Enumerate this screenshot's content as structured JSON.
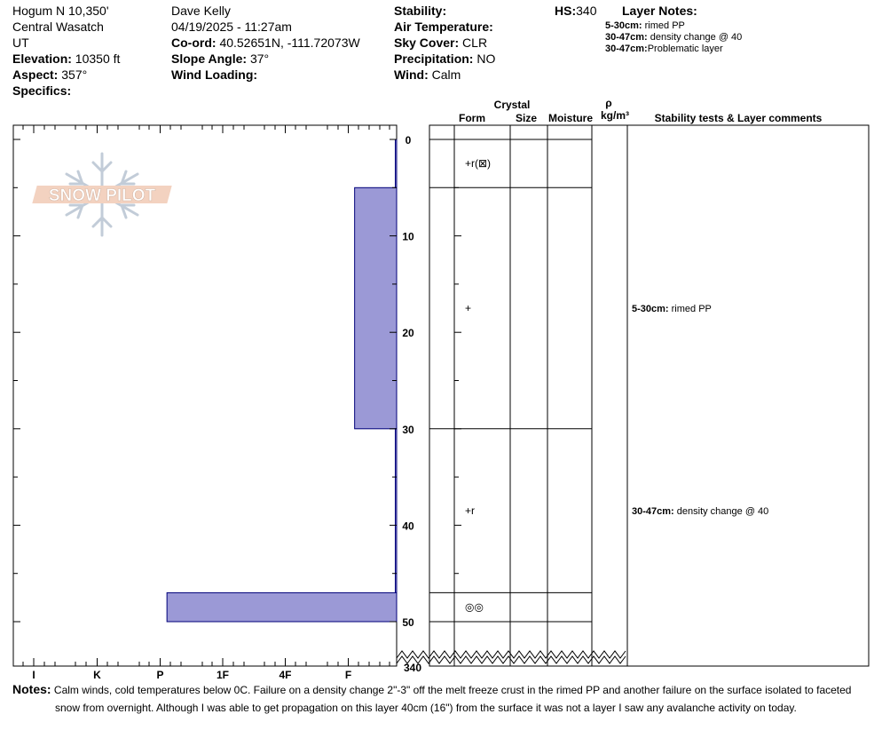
{
  "header": {
    "location": "Hogum N 10,350'",
    "range": "Central Wasatch",
    "state": "UT",
    "elevation_label": "Elevation:",
    "elevation_value": "10350 ft",
    "aspect_label": "Aspect:",
    "aspect_value": "357°",
    "specifics_label": "Specifics:",
    "observer": "Dave Kelly",
    "datetime": "04/19/2025 - 11:27am",
    "coord_label": "Co-ord:",
    "coord_value": "40.52651N, -111.72073W",
    "slope_label": "Slope Angle:",
    "slope_value": "37°",
    "wind_loading_label": "Wind Loading:",
    "stability_label": "Stability:",
    "air_temp_label": "Air Temperature:",
    "sky_label": "Sky Cover:",
    "sky_value": "CLR",
    "precip_label": "Precipitation:",
    "precip_value": "NO",
    "wind_label": "Wind:",
    "wind_value": "Calm",
    "hs_label": "HS:",
    "hs_value": "340",
    "layer_notes_title": "Layer Notes:",
    "layer_notes": [
      {
        "range": "5-30cm:",
        "text": "rimed PP"
      },
      {
        "range": "30-47cm:",
        "text": "density change @ 40"
      },
      {
        "range": "30-47cm:",
        "text": "Problematic layer"
      }
    ]
  },
  "columns": {
    "crystal": "Crystal",
    "form": "Form",
    "size": "Size",
    "moisture": "Moisture",
    "rho": "ρ",
    "density_unit": "kg/m³",
    "comments": "Stability tests & Layer comments"
  },
  "logo_text": "SNOW PILOT",
  "notes_label": "Notes:",
  "notes_line1": "Calm winds, cold temperatures below 0C. Failure on a density change 2\"-3\" off the melt freeze crust in the rimed PP and another failure on the surface isolated to faceted",
  "notes_line2": "snow from overnight. Although I was able to get propagation on this layer 40cm (16\") from the surface it was not a layer I saw any avalanche activity on today.",
  "chart_data": {
    "type": "bar",
    "orientation": "horizontal",
    "description_axis": "hardness",
    "hardness_scale": [
      "I",
      "K",
      "P",
      "1F",
      "4F",
      "F"
    ],
    "depth_ticks": [
      0,
      10,
      20,
      30,
      40,
      50
    ],
    "depth_break_label": "340",
    "depth_range": [
      0,
      50
    ],
    "layers": [
      {
        "top": 0,
        "bottom": 5,
        "hardness": "F-",
        "hardness_index": 6.65
      },
      {
        "top": 5,
        "bottom": 30,
        "hardness": "F",
        "hardness_index": 6.0
      },
      {
        "top": 30,
        "bottom": 47,
        "hardness": "F-",
        "hardness_index": 6.65
      },
      {
        "top": 47,
        "bottom": 50,
        "hardness": "P",
        "hardness_index": 3.0
      }
    ],
    "crystal_forms": [
      {
        "top": 0,
        "bottom": 5,
        "form": "+r(⊠)"
      },
      {
        "top": 5,
        "bottom": 30,
        "form": "+"
      },
      {
        "top": 30,
        "bottom": 47,
        "form": "+r"
      },
      {
        "top": 47,
        "bottom": 50,
        "form": "◎◎"
      }
    ],
    "layer_comments": [
      {
        "depth_mid": 17.5,
        "range": "5-30cm:",
        "text": "rimed PP"
      },
      {
        "depth_mid": 38.5,
        "range": "30-47cm:",
        "text": "density change @ 40"
      }
    ],
    "bar_color": "#9b99d6"
  }
}
